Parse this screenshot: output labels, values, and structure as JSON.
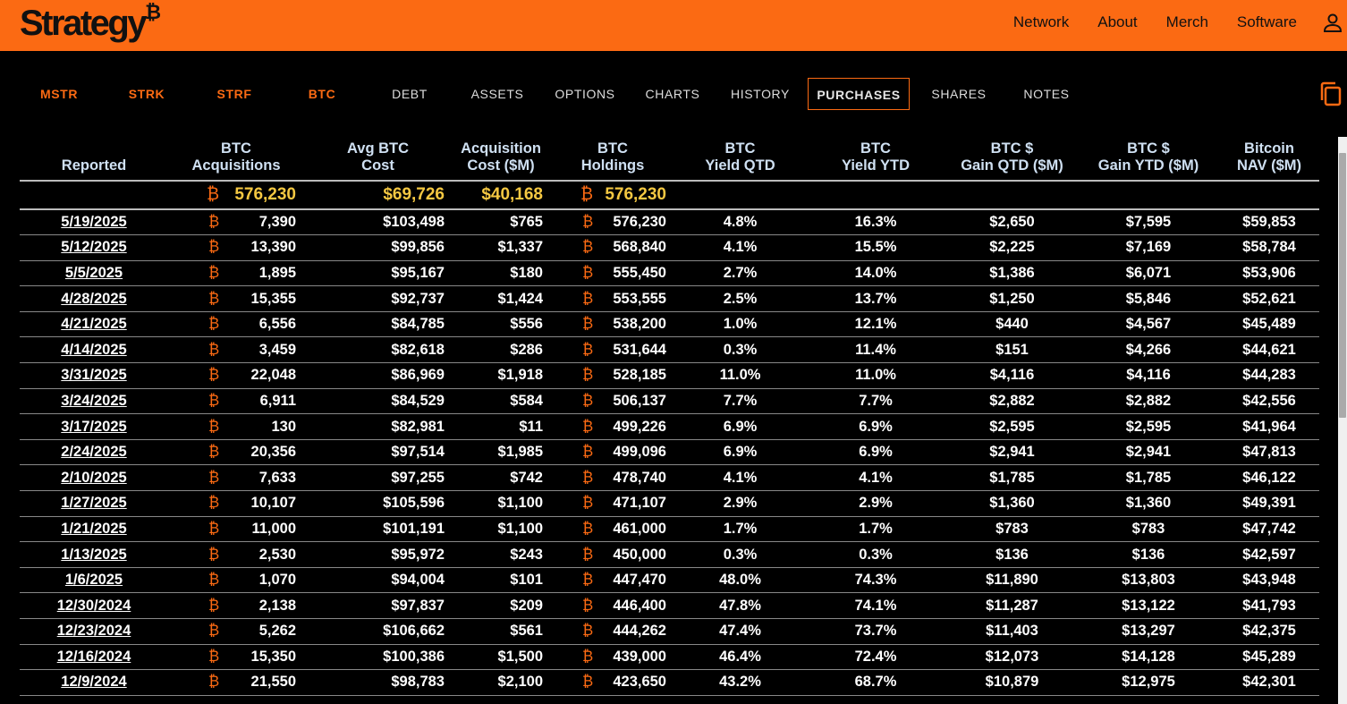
{
  "header": {
    "logo": "Strategy",
    "logo_mark": "₿",
    "nav": [
      "Network",
      "About",
      "Merch",
      "Software"
    ]
  },
  "tabs": [
    "MSTR",
    "STRK",
    "STRF",
    "BTC",
    "DEBT",
    "ASSETS",
    "OPTIONS",
    "CHARTS",
    "HISTORY",
    "PURCHASES",
    "SHARES",
    "NOTES"
  ],
  "table": {
    "btc_symbol": "₿",
    "columns": [
      [
        "Reported"
      ],
      [
        "BTC",
        "Acquisitions"
      ],
      [
        "Avg BTC",
        "Cost"
      ],
      [
        "Acquisition",
        "Cost ($M)"
      ],
      [
        "BTC",
        "Holdings"
      ],
      [
        "BTC",
        "Yield QTD"
      ],
      [
        "BTC",
        "Yield YTD"
      ],
      [
        "BTC $",
        "Gain QTD ($M)"
      ],
      [
        "BTC $",
        "Gain YTD ($M)"
      ],
      [
        "Bitcoin",
        "NAV ($M)"
      ]
    ],
    "totals": [
      "576,230",
      "$69,726",
      "$40,168",
      "576,230"
    ],
    "rows": [
      [
        "5/19/2025",
        "7,390",
        "$103,498",
        "$765",
        "576,230",
        "4.8%",
        "16.3%",
        "$2,650",
        "$7,595",
        "$59,853"
      ],
      [
        "5/12/2025",
        "13,390",
        "$99,856",
        "$1,337",
        "568,840",
        "4.1%",
        "15.5%",
        "$2,225",
        "$7,169",
        "$58,784"
      ],
      [
        "5/5/2025",
        "1,895",
        "$95,167",
        "$180",
        "555,450",
        "2.7%",
        "14.0%",
        "$1,386",
        "$6,071",
        "$53,906"
      ],
      [
        "4/28/2025",
        "15,355",
        "$92,737",
        "$1,424",
        "553,555",
        "2.5%",
        "13.7%",
        "$1,250",
        "$5,846",
        "$52,621"
      ],
      [
        "4/21/2025",
        "6,556",
        "$84,785",
        "$556",
        "538,200",
        "1.0%",
        "12.1%",
        "$440",
        "$4,567",
        "$45,489"
      ],
      [
        "4/14/2025",
        "3,459",
        "$82,618",
        "$286",
        "531,644",
        "0.3%",
        "11.4%",
        "$151",
        "$4,266",
        "$44,621"
      ],
      [
        "3/31/2025",
        "22,048",
        "$86,969",
        "$1,918",
        "528,185",
        "11.0%",
        "11.0%",
        "$4,116",
        "$4,116",
        "$44,283"
      ],
      [
        "3/24/2025",
        "6,911",
        "$84,529",
        "$584",
        "506,137",
        "7.7%",
        "7.7%",
        "$2,882",
        "$2,882",
        "$42,556"
      ],
      [
        "3/17/2025",
        "130",
        "$82,981",
        "$11",
        "499,226",
        "6.9%",
        "6.9%",
        "$2,595",
        "$2,595",
        "$41,964"
      ],
      [
        "2/24/2025",
        "20,356",
        "$97,514",
        "$1,985",
        "499,096",
        "6.9%",
        "6.9%",
        "$2,941",
        "$2,941",
        "$47,813"
      ],
      [
        "2/10/2025",
        "7,633",
        "$97,255",
        "$742",
        "478,740",
        "4.1%",
        "4.1%",
        "$1,785",
        "$1,785",
        "$46,122"
      ],
      [
        "1/27/2025",
        "10,107",
        "$105,596",
        "$1,100",
        "471,107",
        "2.9%",
        "2.9%",
        "$1,360",
        "$1,360",
        "$49,391"
      ],
      [
        "1/21/2025",
        "11,000",
        "$101,191",
        "$1,100",
        "461,000",
        "1.7%",
        "1.7%",
        "$783",
        "$783",
        "$47,742"
      ],
      [
        "1/13/2025",
        "2,530",
        "$95,972",
        "$243",
        "450,000",
        "0.3%",
        "0.3%",
        "$136",
        "$136",
        "$42,597"
      ],
      [
        "1/6/2025",
        "1,070",
        "$94,004",
        "$101",
        "447,470",
        "48.0%",
        "74.3%",
        "$11,890",
        "$13,803",
        "$43,948"
      ],
      [
        "12/30/2024",
        "2,138",
        "$97,837",
        "$209",
        "446,400",
        "47.8%",
        "74.1%",
        "$11,287",
        "$13,122",
        "$41,793"
      ],
      [
        "12/23/2024",
        "5,262",
        "$106,662",
        "$561",
        "444,262",
        "47.4%",
        "73.7%",
        "$11,403",
        "$13,297",
        "$42,375"
      ],
      [
        "12/16/2024",
        "15,350",
        "$100,386",
        "$1,500",
        "439,000",
        "46.4%",
        "72.4%",
        "$12,073",
        "$14,128",
        "$45,289"
      ],
      [
        "12/9/2024",
        "21,550",
        "$98,783",
        "$2,100",
        "423,650",
        "43.2%",
        "68.7%",
        "$10,879",
        "$12,975",
        "$42,301"
      ]
    ]
  }
}
